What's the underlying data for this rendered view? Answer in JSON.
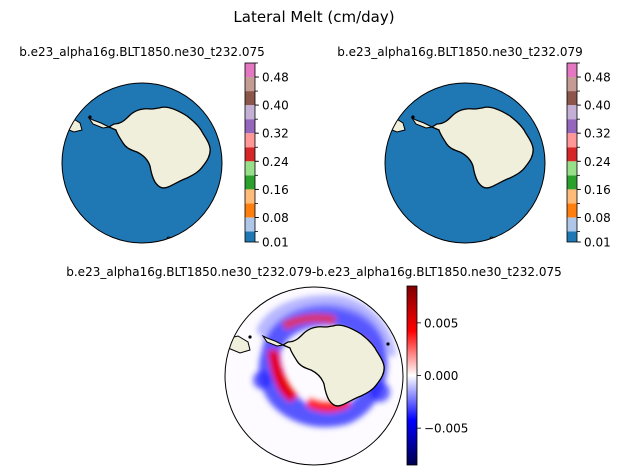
{
  "figure": {
    "suptitle": "Lateral Melt (cm/day)"
  },
  "chart_data": [
    {
      "type": "heatmap",
      "projection": "south-polar-stereographic",
      "title": "b.e23_alpha16g.BLT1850.ne30_t232.075",
      "field_description": "lateral melt near zero everywhere",
      "colorbar": {
        "levels": [
          0.01,
          0.04,
          0.08,
          0.12,
          0.16,
          0.2,
          0.24,
          0.28,
          0.32,
          0.36,
          0.4,
          0.44,
          0.48,
          0.52
        ],
        "tick_labels": [
          "0.01",
          "0.08",
          "0.16",
          "0.24",
          "0.32",
          "0.40",
          "0.48"
        ],
        "colors": [
          "#1f77b4",
          "#aec7e8",
          "#ff7f0e",
          "#ffbb78",
          "#2ca02c",
          "#98df8a",
          "#d62728",
          "#ff9896",
          "#9467bd",
          "#c5b0d5",
          "#8c564b",
          "#c49c94",
          "#e377c2",
          "#f7b6d2",
          "#7f7f7f",
          "#c7c7c7",
          "#bcbd22",
          "#dbdb8d",
          "#17becf",
          "#9edae5"
        ],
        "range": [
          0.01,
          0.52
        ]
      },
      "ocean_color": "#1f77b4",
      "land_color": "#efefdb"
    },
    {
      "type": "heatmap",
      "projection": "south-polar-stereographic",
      "title": "b.e23_alpha16g.BLT1850.ne30_t232.079",
      "field_description": "lateral melt near zero everywhere",
      "colorbar": {
        "levels": [
          0.01,
          0.04,
          0.08,
          0.12,
          0.16,
          0.2,
          0.24,
          0.28,
          0.32,
          0.36,
          0.4,
          0.44,
          0.48,
          0.52
        ],
        "tick_labels": [
          "0.01",
          "0.08",
          "0.16",
          "0.24",
          "0.32",
          "0.40",
          "0.48"
        ],
        "range": [
          0.01,
          0.52
        ]
      },
      "ocean_color": "#1f77b4",
      "land_color": "#efefdb"
    },
    {
      "type": "heatmap",
      "projection": "south-polar-stereographic",
      "title": "b.e23_alpha16g.BLT1850.ne30_t232.079-b.e23_alpha16g.BLT1850.ne30_t232.075",
      "field_description": "difference field, mostly near zero with red/blue anomalies around sea-ice margin",
      "colorbar": {
        "colormap": "seismic",
        "range": [
          -0.0085,
          0.0085
        ],
        "ticks": [
          -0.005,
          0.0,
          0.005
        ],
        "tick_labels": [
          "−0.005",
          "0.000",
          "0.005"
        ]
      },
      "land_color": "#efefdb"
    }
  ]
}
